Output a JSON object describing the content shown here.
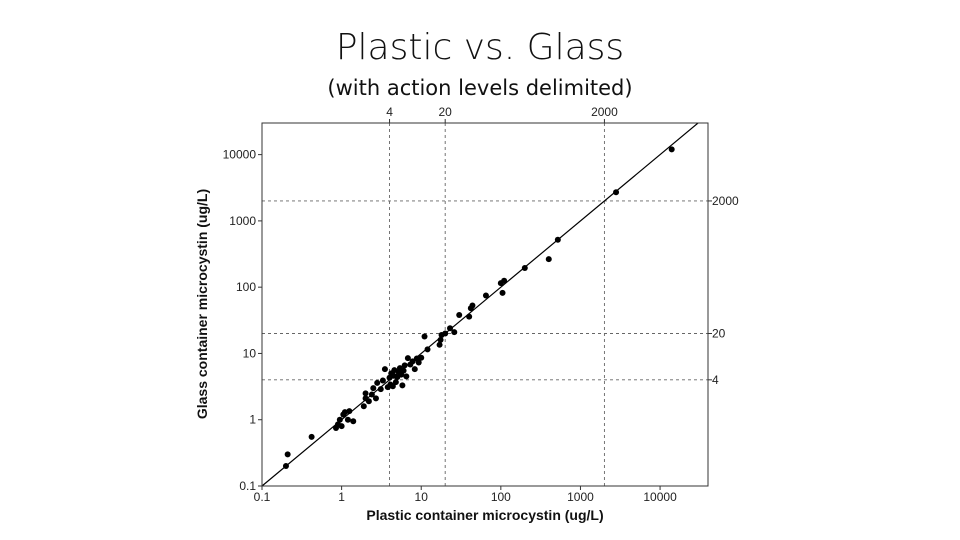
{
  "slide": {
    "title": "Plastic vs. Glass",
    "subtitle": "(with action levels delimited)"
  },
  "chart_data": {
    "type": "scatter",
    "x_scale": "log",
    "y_scale": "log",
    "xlim": [
      0.1,
      40000
    ],
    "ylim": [
      0.1,
      30000
    ],
    "xlabel": "Plastic container microcystin (ug/L)",
    "ylabel": "Glass container microcystin (ug/L)",
    "x_ticks": [
      "0.1",
      "1",
      "10",
      "100",
      "1000",
      "10000"
    ],
    "y_ticks": [
      "0.1",
      "1",
      "10",
      "100",
      "1000",
      "10000"
    ],
    "grid": false,
    "legend": "none",
    "identity_line": true,
    "action_levels": [
      {
        "value": 4,
        "label": "4"
      },
      {
        "value": 20,
        "label": "20"
      },
      {
        "value": 2000,
        "label": "2000"
      }
    ],
    "point_color": "#000000",
    "line_color": "#000000",
    "points": [
      {
        "x": 0.2,
        "y": 0.2
      },
      {
        "x": 0.21,
        "y": 0.3
      },
      {
        "x": 0.42,
        "y": 0.55
      },
      {
        "x": 0.85,
        "y": 0.75
      },
      {
        "x": 0.9,
        "y": 0.85
      },
      {
        "x": 1.0,
        "y": 0.8
      },
      {
        "x": 0.95,
        "y": 1.0
      },
      {
        "x": 1.05,
        "y": 1.2
      },
      {
        "x": 1.1,
        "y": 1.3
      },
      {
        "x": 1.2,
        "y": 1.0
      },
      {
        "x": 1.25,
        "y": 1.35
      },
      {
        "x": 1.4,
        "y": 0.95
      },
      {
        "x": 1.9,
        "y": 1.6
      },
      {
        "x": 2.0,
        "y": 2.1
      },
      {
        "x": 2.2,
        "y": 1.9
      },
      {
        "x": 2.0,
        "y": 2.5
      },
      {
        "x": 2.4,
        "y": 2.4
      },
      {
        "x": 2.5,
        "y": 3.0
      },
      {
        "x": 2.7,
        "y": 2.1
      },
      {
        "x": 2.8,
        "y": 3.6
      },
      {
        "x": 3.1,
        "y": 2.9
      },
      {
        "x": 3.3,
        "y": 3.9
      },
      {
        "x": 3.5,
        "y": 5.8
      },
      {
        "x": 3.8,
        "y": 3.1
      },
      {
        "x": 4.0,
        "y": 4.3
      },
      {
        "x": 4.1,
        "y": 3.4
      },
      {
        "x": 4.2,
        "y": 5.0
      },
      {
        "x": 4.4,
        "y": 3.2
      },
      {
        "x": 4.5,
        "y": 4.6
      },
      {
        "x": 4.6,
        "y": 5.6
      },
      {
        "x": 4.8,
        "y": 3.7
      },
      {
        "x": 5.0,
        "y": 4.4
      },
      {
        "x": 5.2,
        "y": 5.3
      },
      {
        "x": 5.4,
        "y": 6.0
      },
      {
        "x": 5.6,
        "y": 4.8
      },
      {
        "x": 5.8,
        "y": 3.3
      },
      {
        "x": 6.0,
        "y": 5.5
      },
      {
        "x": 6.2,
        "y": 6.6
      },
      {
        "x": 6.5,
        "y": 4.5
      },
      {
        "x": 6.8,
        "y": 8.5
      },
      {
        "x": 7.3,
        "y": 6.8
      },
      {
        "x": 7.8,
        "y": 7.6
      },
      {
        "x": 8.3,
        "y": 5.8
      },
      {
        "x": 8.8,
        "y": 8.4
      },
      {
        "x": 9.3,
        "y": 7.3
      },
      {
        "x": 10,
        "y": 8.6
      },
      {
        "x": 11,
        "y": 18
      },
      {
        "x": 12,
        "y": 11.5
      },
      {
        "x": 17,
        "y": 13.5
      },
      {
        "x": 18,
        "y": 19
      },
      {
        "x": 17.5,
        "y": 16
      },
      {
        "x": 20,
        "y": 20
      },
      {
        "x": 23,
        "y": 24
      },
      {
        "x": 26,
        "y": 21
      },
      {
        "x": 30,
        "y": 38
      },
      {
        "x": 40,
        "y": 36
      },
      {
        "x": 42,
        "y": 48
      },
      {
        "x": 44,
        "y": 53
      },
      {
        "x": 65,
        "y": 75
      },
      {
        "x": 100,
        "y": 115
      },
      {
        "x": 110,
        "y": 125
      },
      {
        "x": 105,
        "y": 82
      },
      {
        "x": 200,
        "y": 195
      },
      {
        "x": 400,
        "y": 265
      },
      {
        "x": 520,
        "y": 520
      },
      {
        "x": 2800,
        "y": 2700
      },
      {
        "x": 14000,
        "y": 12000
      }
    ]
  }
}
